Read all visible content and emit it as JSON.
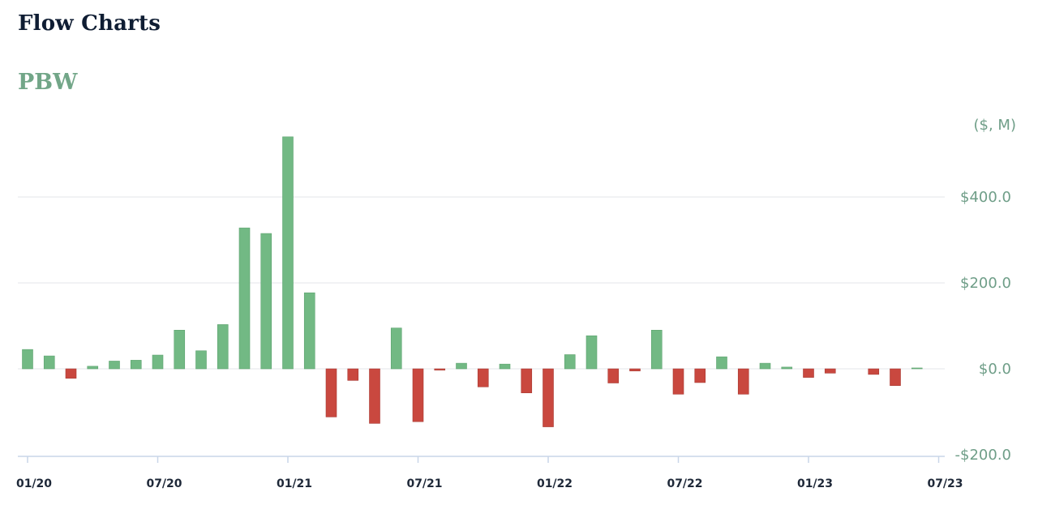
{
  "header": {
    "title": "Flow Charts",
    "ticker": "PBW"
  },
  "chart_data": {
    "type": "bar",
    "title": "PBW",
    "unit_label": "($, M)",
    "ylim": [
      -200,
      550
    ],
    "y_ticks": [
      {
        "value": 400,
        "label": "$400.0"
      },
      {
        "value": 200,
        "label": "$200.0"
      },
      {
        "value": 0,
        "label": "$0.0"
      },
      {
        "value": -200,
        "label": "-$200.0"
      }
    ],
    "x_ticks": [
      "01/20",
      "07/20",
      "01/21",
      "07/21",
      "01/22",
      "07/22",
      "01/23",
      "07/23"
    ],
    "months": [
      "2020-01",
      "2020-02",
      "2020-03",
      "2020-04",
      "2020-05",
      "2020-06",
      "2020-07",
      "2020-08",
      "2020-09",
      "2020-10",
      "2020-11",
      "2020-12",
      "2021-01",
      "2021-02",
      "2021-03",
      "2021-04",
      "2021-05",
      "2021-06",
      "2021-07",
      "2021-08",
      "2021-09",
      "2021-10",
      "2021-11",
      "2021-12",
      "2022-01",
      "2022-02",
      "2022-03",
      "2022-04",
      "2022-05",
      "2022-06",
      "2022-07",
      "2022-08",
      "2022-09",
      "2022-10",
      "2022-11",
      "2022-12",
      "2023-01",
      "2023-02",
      "2023-03",
      "2023-04",
      "2023-05",
      "2023-06"
    ],
    "values": [
      45,
      30,
      -22,
      6,
      18,
      20,
      32,
      90,
      42,
      103,
      328,
      315,
      540,
      177,
      -112,
      -27,
      -127,
      95,
      -123,
      -3,
      13,
      -42,
      11,
      -56,
      -135,
      33,
      77,
      -33,
      -5,
      90,
      -59,
      -32,
      28,
      -59,
      13,
      4,
      -20,
      -10,
      0,
      -13,
      -39,
      2
    ],
    "grid": true,
    "colors": {
      "positive": "#72b984",
      "positive_edge": "#5ea36f",
      "negative": "#c9483f",
      "negative_edge": "#a83a33",
      "gridline": "#e3e6ea",
      "axis": "#c9d6e8"
    }
  }
}
